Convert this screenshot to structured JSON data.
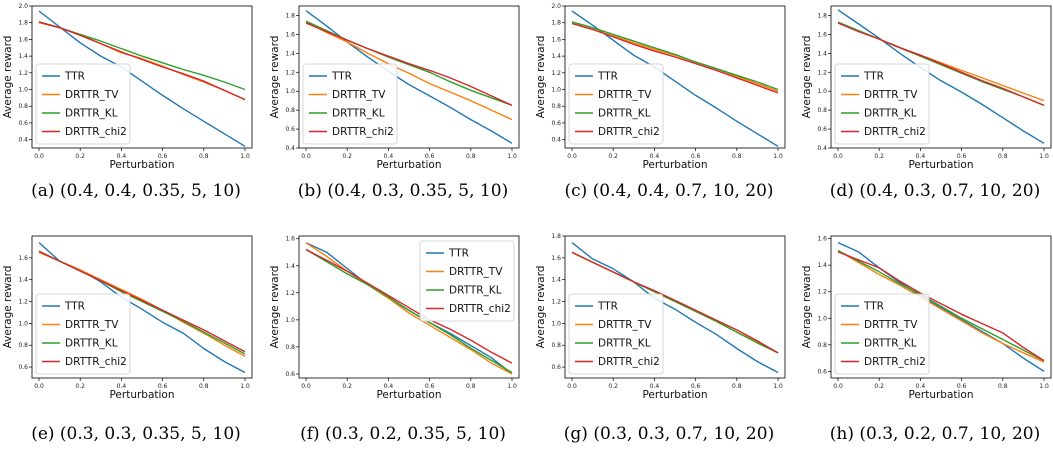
{
  "colors": {
    "TTR": "#1f77b4",
    "DRTTR_TV": "#ff7f0e",
    "DRTTR_KL": "#2ca02c",
    "DRTTR_chi2": "#d62728"
  },
  "chart_data": [
    {
      "type": "line",
      "caption": "(a) (0.4, 0.4, 0.35, 5, 10)",
      "xlabel": "Perturbation",
      "ylabel": "Average reward",
      "xlim": [
        0,
        1
      ],
      "ylim": [
        0.3,
        2.0
      ],
      "xticks": [
        "0.0",
        "0.2",
        "0.4",
        "0.6",
        "0.8",
        "1.0"
      ],
      "yticks": [
        "0.4",
        "0.6",
        "0.8",
        "1.0",
        "1.2",
        "1.4",
        "1.6",
        "1.8",
        "2.0"
      ],
      "legend": "lower-left",
      "x": [
        0,
        0.1,
        0.2,
        0.3,
        0.4,
        0.5,
        0.6,
        0.7,
        0.8,
        0.9,
        1.0
      ],
      "series": [
        {
          "name": "TTR",
          "values": [
            1.94,
            1.75,
            1.56,
            1.4,
            1.27,
            1.1,
            0.93,
            0.77,
            0.62,
            0.47,
            0.32
          ]
        },
        {
          "name": "DRTTR_TV",
          "values": [
            1.8,
            1.74,
            1.65,
            1.55,
            1.44,
            1.37,
            1.28,
            1.18,
            1.09,
            0.99,
            0.88
          ]
        },
        {
          "name": "DRTTR_KL",
          "values": [
            1.81,
            1.74,
            1.66,
            1.58,
            1.49,
            1.4,
            1.32,
            1.24,
            1.17,
            1.09,
            1.0
          ]
        },
        {
          "name": "DRTTR_chi2",
          "values": [
            1.81,
            1.74,
            1.65,
            1.55,
            1.45,
            1.36,
            1.27,
            1.19,
            1.1,
            0.99,
            0.88
          ]
        }
      ]
    },
    {
      "type": "line",
      "caption": "(b) (0.4, 0.3, 0.35, 5, 10)",
      "xlabel": "Perturbation",
      "ylabel": "Average reward",
      "xlim": [
        0,
        1
      ],
      "ylim": [
        0.4,
        1.9
      ],
      "xticks": [
        "0.0",
        "0.2",
        "0.4",
        "0.6",
        "0.8",
        "1.0"
      ],
      "yticks": [
        "0.4",
        "0.6",
        "0.8",
        "1.0",
        "1.2",
        "1.4",
        "1.6",
        "1.8"
      ],
      "legend": "lower-left",
      "x": [
        0,
        0.1,
        0.2,
        0.3,
        0.4,
        0.5,
        0.6,
        0.7,
        0.8,
        0.9,
        1.0
      ],
      "series": [
        {
          "name": "TTR",
          "values": [
            1.85,
            1.69,
            1.52,
            1.36,
            1.21,
            1.07,
            0.95,
            0.83,
            0.7,
            0.58,
            0.45
          ]
        },
        {
          "name": "DRTTR_TV",
          "values": [
            1.73,
            1.62,
            1.52,
            1.4,
            1.29,
            1.19,
            1.08,
            0.99,
            0.9,
            0.8,
            0.7
          ]
        },
        {
          "name": "DRTTR_KL",
          "values": [
            1.74,
            1.64,
            1.54,
            1.45,
            1.36,
            1.28,
            1.2,
            1.1,
            1.01,
            0.93,
            0.85
          ]
        },
        {
          "name": "DRTTR_chi2",
          "values": [
            1.72,
            1.63,
            1.54,
            1.45,
            1.37,
            1.29,
            1.22,
            1.14,
            1.05,
            0.95,
            0.85
          ]
        }
      ]
    },
    {
      "type": "line",
      "caption": "(c) (0.4, 0.4, 0.7, 10, 20)",
      "xlabel": "Perturbation",
      "ylabel": "Average reward",
      "xlim": [
        0,
        1
      ],
      "ylim": [
        0.3,
        2.0
      ],
      "xticks": [
        "0.0",
        "0.2",
        "0.4",
        "0.6",
        "0.8",
        "1.0"
      ],
      "yticks": [
        "0.4",
        "0.6",
        "0.8",
        "1.0",
        "1.2",
        "1.4",
        "1.6",
        "1.8",
        "2.0"
      ],
      "legend": "lower-left",
      "x": [
        0,
        0.1,
        0.2,
        0.3,
        0.4,
        0.5,
        0.6,
        0.7,
        0.8,
        0.9,
        1.0
      ],
      "series": [
        {
          "name": "TTR",
          "values": [
            1.94,
            1.77,
            1.59,
            1.41,
            1.27,
            1.1,
            0.93,
            0.78,
            0.62,
            0.47,
            0.32
          ]
        },
        {
          "name": "DRTTR_TV",
          "values": [
            1.79,
            1.72,
            1.64,
            1.56,
            1.48,
            1.41,
            1.33,
            1.25,
            1.16,
            1.07,
            0.98
          ]
        },
        {
          "name": "DRTTR_KL",
          "values": [
            1.81,
            1.74,
            1.66,
            1.58,
            1.5,
            1.42,
            1.33,
            1.25,
            1.17,
            1.09,
            1.0
          ]
        },
        {
          "name": "DRTTR_chi2",
          "values": [
            1.79,
            1.72,
            1.63,
            1.54,
            1.46,
            1.39,
            1.31,
            1.23,
            1.14,
            1.05,
            0.96
          ]
        }
      ]
    },
    {
      "type": "line",
      "caption": "(d) (0.4, 0.3, 0.7, 10, 20)",
      "xlabel": "Perturbation",
      "ylabel": "Average reward",
      "xlim": [
        0,
        1
      ],
      "ylim": [
        0.4,
        1.9
      ],
      "xticks": [
        "0.0",
        "0.2",
        "0.4",
        "0.6",
        "0.8",
        "1.0"
      ],
      "yticks": [
        "0.4",
        "0.6",
        "0.8",
        "1.0",
        "1.2",
        "1.4",
        "1.6",
        "1.8"
      ],
      "legend": "lower-left",
      "x": [
        0,
        0.1,
        0.2,
        0.3,
        0.4,
        0.5,
        0.6,
        0.7,
        0.8,
        0.9,
        1.0
      ],
      "series": [
        {
          "name": "TTR",
          "values": [
            1.86,
            1.71,
            1.56,
            1.4,
            1.25,
            1.11,
            0.99,
            0.86,
            0.72,
            0.58,
            0.45
          ]
        },
        {
          "name": "DRTTR_TV",
          "values": [
            1.72,
            1.64,
            1.55,
            1.46,
            1.38,
            1.3,
            1.22,
            1.14,
            1.06,
            0.98,
            0.9
          ]
        },
        {
          "name": "DRTTR_KL",
          "values": [
            1.73,
            1.64,
            1.55,
            1.46,
            1.37,
            1.28,
            1.19,
            1.1,
            1.02,
            0.94,
            0.85
          ]
        },
        {
          "name": "DRTTR_chi2",
          "values": [
            1.72,
            1.63,
            1.55,
            1.46,
            1.38,
            1.29,
            1.2,
            1.11,
            1.03,
            0.94,
            0.85
          ]
        }
      ]
    },
    {
      "type": "line",
      "caption": "(e) (0.3, 0.3, 0.35, 5, 10)",
      "xlabel": "Perturbation",
      "ylabel": "Average reward",
      "xlim": [
        0,
        1
      ],
      "ylim": [
        0.5,
        1.8
      ],
      "xticks": [
        "0.0",
        "0.2",
        "0.4",
        "0.6",
        "0.8",
        "1.0"
      ],
      "yticks": [
        "0.6",
        "0.8",
        "1.0",
        "1.2",
        "1.4",
        "1.6"
      ],
      "legend": "lower-left",
      "x": [
        0,
        0.1,
        0.2,
        0.3,
        0.4,
        0.5,
        0.6,
        0.7,
        0.8,
        0.9,
        1.0
      ],
      "series": [
        {
          "name": "TTR",
          "values": [
            1.74,
            1.57,
            1.49,
            1.38,
            1.24,
            1.13,
            1.01,
            0.91,
            0.77,
            0.65,
            0.55
          ]
        },
        {
          "name": "DRTTR_TV",
          "values": [
            1.65,
            1.57,
            1.49,
            1.4,
            1.31,
            1.22,
            1.12,
            1.01,
            0.91,
            0.8,
            0.7
          ]
        },
        {
          "name": "DRTTR_KL",
          "values": [
            1.66,
            1.57,
            1.48,
            1.39,
            1.29,
            1.2,
            1.11,
            1.02,
            0.92,
            0.82,
            0.72
          ]
        },
        {
          "name": "DRTTR_chi2",
          "values": [
            1.66,
            1.57,
            1.48,
            1.39,
            1.3,
            1.21,
            1.12,
            1.03,
            0.94,
            0.84,
            0.74
          ]
        }
      ]
    },
    {
      "type": "line",
      "caption": "(f) (0.3, 0.2, 0.35, 5, 10)",
      "xlabel": "Perturbation",
      "ylabel": "Average reward",
      "xlim": [
        0,
        1
      ],
      "ylim": [
        0.57,
        1.62
      ],
      "xticks": [
        "0.0",
        "0.2",
        "0.4",
        "0.6",
        "0.8",
        "1.0"
      ],
      "yticks": [
        "0.6",
        "0.8",
        "1.0",
        "1.2",
        "1.4",
        "1.6"
      ],
      "legend": "upper-right",
      "x": [
        0,
        0.1,
        0.2,
        0.3,
        0.4,
        0.5,
        0.6,
        0.7,
        0.8,
        0.9,
        1.0
      ],
      "series": [
        {
          "name": "TTR",
          "values": [
            1.57,
            1.5,
            1.38,
            1.26,
            1.16,
            1.07,
            0.98,
            0.9,
            0.81,
            0.72,
            0.6
          ]
        },
        {
          "name": "DRTTR_TV",
          "values": [
            1.57,
            1.47,
            1.36,
            1.26,
            1.16,
            1.05,
            0.96,
            0.87,
            0.78,
            0.68,
            0.6
          ]
        },
        {
          "name": "DRTTR_KL",
          "values": [
            1.52,
            1.43,
            1.34,
            1.26,
            1.17,
            1.07,
            0.98,
            0.89,
            0.79,
            0.7,
            0.61
          ]
        },
        {
          "name": "DRTTR_chi2",
          "values": [
            1.52,
            1.44,
            1.36,
            1.27,
            1.18,
            1.09,
            1.0,
            0.93,
            0.85,
            0.76,
            0.68
          ]
        }
      ]
    },
    {
      "type": "line",
      "caption": "(g) (0.3, 0.3, 0.7, 10, 20)",
      "xlabel": "Perturbation",
      "ylabel": "Average reward",
      "xlim": [
        0,
        1
      ],
      "ylim": [
        0.5,
        1.8
      ],
      "xticks": [
        "0.0",
        "0.2",
        "0.4",
        "0.6",
        "0.8",
        "1.0"
      ],
      "yticks": [
        "0.6",
        "0.8",
        "1.0",
        "1.2",
        "1.4",
        "1.6",
        "1.8"
      ],
      "legend": "lower-left",
      "x": [
        0,
        0.1,
        0.2,
        0.3,
        0.4,
        0.5,
        0.6,
        0.7,
        0.8,
        0.9,
        1.0
      ],
      "series": [
        {
          "name": "TTR",
          "values": [
            1.74,
            1.59,
            1.5,
            1.38,
            1.23,
            1.13,
            1.01,
            0.9,
            0.77,
            0.65,
            0.55
          ]
        },
        {
          "name": "DRTTR_TV",
          "values": [
            1.65,
            1.56,
            1.47,
            1.38,
            1.29,
            1.2,
            1.11,
            1.02,
            0.92,
            0.83,
            0.73
          ]
        },
        {
          "name": "DRTTR_KL",
          "values": [
            1.65,
            1.56,
            1.47,
            1.38,
            1.29,
            1.2,
            1.11,
            1.02,
            0.92,
            0.82,
            0.73
          ]
        },
        {
          "name": "DRTTR_chi2",
          "values": [
            1.65,
            1.56,
            1.47,
            1.38,
            1.3,
            1.21,
            1.12,
            1.03,
            0.94,
            0.84,
            0.73
          ]
        }
      ]
    },
    {
      "type": "line",
      "caption": "(h) (0.3, 0.2, 0.7, 10, 20)",
      "xlabel": "Perturbation",
      "ylabel": "Average reward",
      "xlim": [
        0,
        1
      ],
      "ylim": [
        0.55,
        1.62
      ],
      "xticks": [
        "0.0",
        "0.2",
        "0.4",
        "0.6",
        "0.8",
        "1.0"
      ],
      "yticks": [
        "0.6",
        "0.8",
        "1.0",
        "1.2",
        "1.4",
        "1.6"
      ],
      "legend": "lower-left",
      "x": [
        0,
        0.1,
        0.2,
        0.3,
        0.4,
        0.5,
        0.6,
        0.7,
        0.8,
        0.9,
        1.0
      ],
      "series": [
        {
          "name": "TTR",
          "values": [
            1.57,
            1.5,
            1.38,
            1.27,
            1.17,
            1.08,
            0.99,
            0.9,
            0.81,
            0.7,
            0.6
          ]
        },
        {
          "name": "DRTTR_TV",
          "values": [
            1.51,
            1.42,
            1.33,
            1.25,
            1.16,
            1.07,
            0.98,
            0.89,
            0.81,
            0.74,
            0.67
          ]
        },
        {
          "name": "DRTTR_KL",
          "values": [
            1.51,
            1.43,
            1.35,
            1.26,
            1.18,
            1.09,
            1.0,
            0.92,
            0.84,
            0.76,
            0.68
          ]
        },
        {
          "name": "DRTTR_chi2",
          "values": [
            1.5,
            1.44,
            1.38,
            1.28,
            1.19,
            1.11,
            1.03,
            0.96,
            0.89,
            0.78,
            0.68
          ]
        }
      ]
    }
  ]
}
